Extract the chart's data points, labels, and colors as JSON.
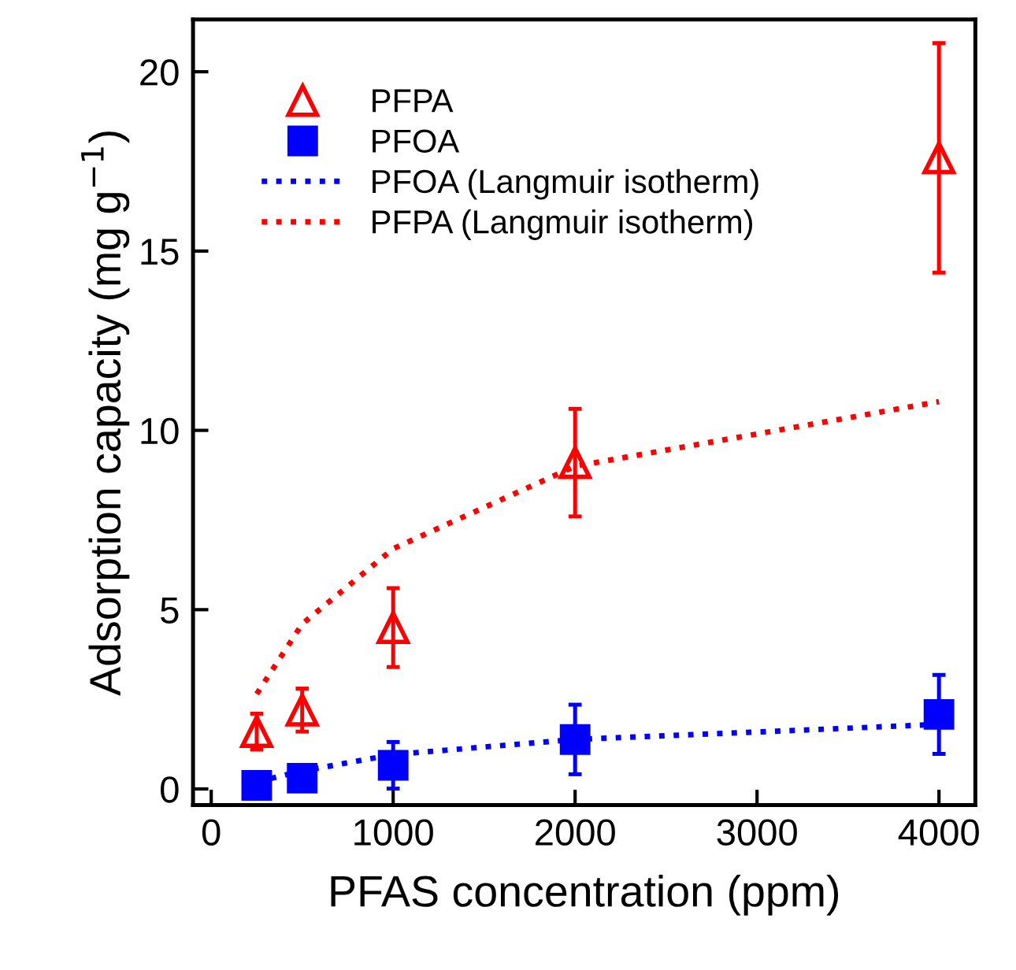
{
  "chart_data": {
    "type": "scatter",
    "xlabel": "PFAS concentration (ppm)",
    "ylabel": "Adsorption capacity (mg g$^{−1}$)",
    "x": [
      250,
      500,
      1000,
      2000,
      4000
    ],
    "series": [
      {
        "name": "PFPA",
        "color": "#ff0000",
        "marker": "triangle",
        "values": [
          1.6,
          2.2,
          4.5,
          9.1,
          17.6
        ],
        "errors": [
          0.5,
          0.6,
          1.1,
          1.5,
          3.2
        ]
      },
      {
        "name": "PFOA",
        "color": "#0000ff",
        "marker": "square",
        "values": [
          0.1,
          0.3,
          0.66,
          1.38,
          2.08
        ],
        "errors": [
          null,
          null,
          0.65,
          0.97,
          1.1
        ]
      },
      {
        "name": "PFOA (Langmuir isotherm)",
        "type": "line",
        "line_style": "dotted",
        "marker": "none",
        "color": "#0000ff",
        "values": [
          0.2,
          0.5,
          0.96,
          1.38,
          1.8
        ]
      },
      {
        "name": "PFPA (Langmuir isotherm)",
        "type": "line",
        "line_style": "dotted",
        "marker": "none",
        "color": "#ff0000",
        "values": [
          2.65,
          4.6,
          6.7,
          9.0,
          10.8
        ]
      }
    ],
    "xlim": [
      -100,
      4200
    ],
    "ylim": [
      -0.45,
      21.46
    ],
    "xticks": [
      0,
      1000,
      2000,
      3000,
      4000
    ],
    "yticks": [
      0,
      5,
      10,
      15,
      20
    ],
    "grid": false,
    "legend": "top left"
  }
}
